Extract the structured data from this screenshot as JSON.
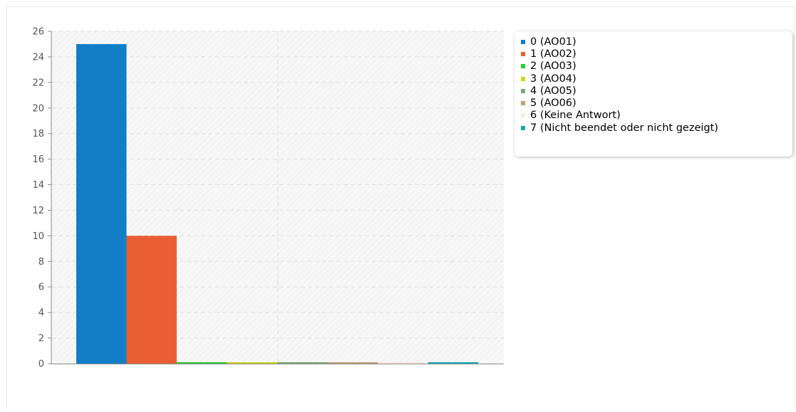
{
  "colors": {
    "series": [
      "#127ec8",
      "#e95f33",
      "#2ec93b",
      "#d2d222",
      "#7ba87e",
      "#c3a07d",
      "#fbe7e2",
      "#1aa9b0"
    ],
    "grid": "#dddddd",
    "axis": "#888888",
    "plot_background": "#f7f7f7"
  },
  "chart_data": {
    "type": "bar",
    "title": "",
    "xlabel": "",
    "ylabel": "",
    "ylim": [
      0,
      26
    ],
    "y_ticks": [
      "0",
      "2",
      "4",
      "6",
      "8",
      "10",
      "12",
      "14",
      "16",
      "18",
      "20",
      "22",
      "24",
      "26"
    ],
    "grid": true,
    "legend_position": "top-right, outside plot",
    "series": [
      {
        "name": "0 (AO01)",
        "value": 25
      },
      {
        "name": "1 (AO02)",
        "value": 10
      },
      {
        "name": "2 (AO03)",
        "value": 0
      },
      {
        "name": "3 (AO04)",
        "value": 0
      },
      {
        "name": "4 (AO05)",
        "value": 0
      },
      {
        "name": "5 (AO06)",
        "value": 0
      },
      {
        "name": "6 (Keine Antwort)",
        "value": 0
      },
      {
        "name": "7 (Nicht beendet oder nicht gezeigt)",
        "value": 0
      }
    ]
  }
}
